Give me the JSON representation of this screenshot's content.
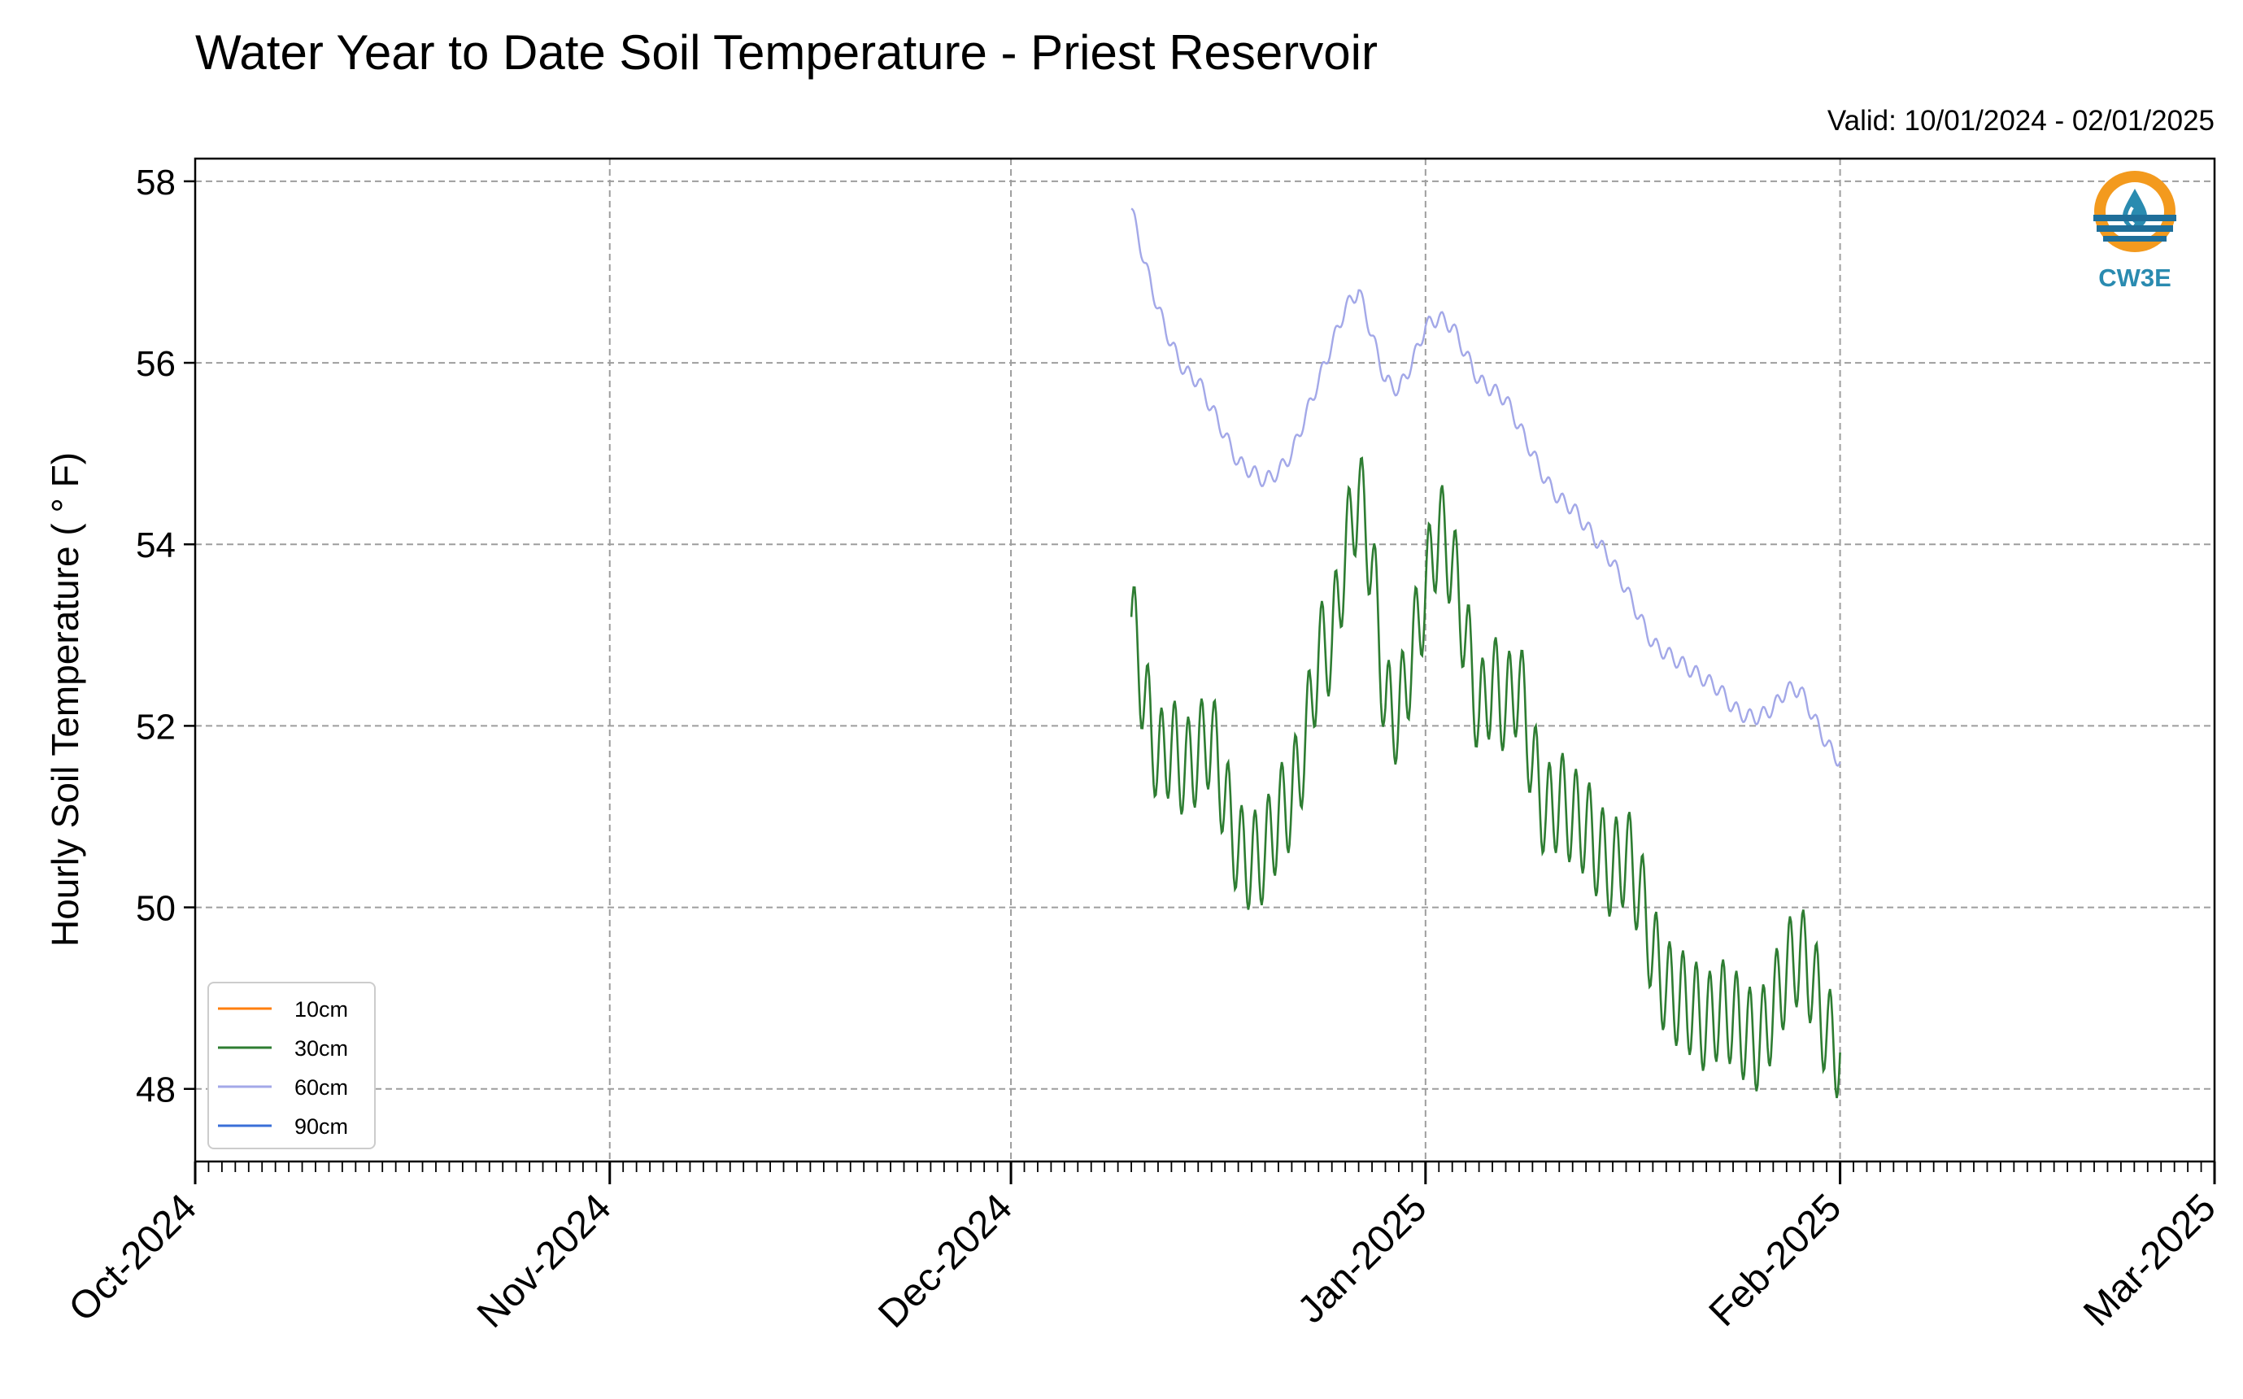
{
  "chart_data": {
    "type": "line",
    "title": "Water Year to Date Soil Temperature - Priest Reservoir",
    "subtitle": "Valid: 10/01/2024 - 02/01/2025",
    "xlabel": "",
    "ylabel": "Hourly Soil Temperature ($^\\circ$F)",
    "ylabel_text": "Hourly Soil Temperature ( ° F)",
    "x_ticks": [
      "Oct-2024",
      "Nov-2024",
      "Dec-2024",
      "Jan-2025",
      "Feb-2025",
      "Mar-2025"
    ],
    "x_tick_dates": [
      "2024-10-01",
      "2024-11-01",
      "2024-12-01",
      "2025-01-01",
      "2025-02-01",
      "2025-03-01"
    ],
    "xlim": [
      "2024-10-01",
      "2025-03-01"
    ],
    "y_ticks": [
      "48",
      "50",
      "52",
      "54",
      "56",
      "58"
    ],
    "ylim": [
      47.2,
      58.25
    ],
    "grid": true,
    "legend_position": "lower-left",
    "series": [
      {
        "name": "10cm",
        "color": "#ff7f0e",
        "x": [],
        "y": []
      },
      {
        "name": "30cm",
        "color": "#2e7d32",
        "x": [
          "2024-12-10",
          "2024-12-11",
          "2024-12-12",
          "2024-12-13",
          "2024-12-14",
          "2024-12-15",
          "2024-12-16",
          "2024-12-17",
          "2024-12-18",
          "2024-12-19",
          "2024-12-20",
          "2024-12-21",
          "2024-12-22",
          "2024-12-23",
          "2024-12-24",
          "2024-12-25",
          "2024-12-26",
          "2024-12-27",
          "2024-12-28",
          "2024-12-29",
          "2024-12-30",
          "2024-12-31",
          "2025-01-01",
          "2025-01-02",
          "2025-01-03",
          "2025-01-04",
          "2025-01-05",
          "2025-01-06",
          "2025-01-07",
          "2025-01-08",
          "2025-01-09",
          "2025-01-10",
          "2025-01-11",
          "2025-01-12",
          "2025-01-13",
          "2025-01-14",
          "2025-01-15",
          "2025-01-16",
          "2025-01-17",
          "2025-01-18",
          "2025-01-19",
          "2025-01-20",
          "2025-01-21",
          "2025-01-22",
          "2025-01-23",
          "2025-01-24",
          "2025-01-25",
          "2025-01-26",
          "2025-01-27",
          "2025-01-28",
          "2025-01-29",
          "2025-01-30",
          "2025-01-31",
          "2025-02-01"
        ],
        "y": [
          53.2,
          52.3,
          51.6,
          51.8,
          51.5,
          51.7,
          51.9,
          51.2,
          50.6,
          50.5,
          50.6,
          51.0,
          51.2,
          51.8,
          52.8,
          52.9,
          53.9,
          54.6,
          53.8,
          52.2,
          52.1,
          52.8,
          53.5,
          54.2,
          53.8,
          53.0,
          52.1,
          52.5,
          52.2,
          52.5,
          51.6,
          51.0,
          51.2,
          51.0,
          50.9,
          50.6,
          50.4,
          50.6,
          50.2,
          49.5,
          49.1,
          49.0,
          48.9,
          48.7,
          48.9,
          48.8,
          48.6,
          48.5,
          48.9,
          49.3,
          49.5,
          49.2,
          48.6,
          48.4
        ]
      },
      {
        "name": "60cm",
        "color": "#a3a8e8",
        "x": [
          "2024-12-10",
          "2024-12-11",
          "2024-12-12",
          "2024-12-13",
          "2024-12-14",
          "2024-12-15",
          "2024-12-16",
          "2024-12-17",
          "2024-12-18",
          "2024-12-19",
          "2024-12-20",
          "2024-12-21",
          "2024-12-22",
          "2024-12-23",
          "2024-12-24",
          "2024-12-25",
          "2024-12-26",
          "2024-12-27",
          "2024-12-28",
          "2024-12-29",
          "2024-12-30",
          "2024-12-31",
          "2025-01-01",
          "2025-01-02",
          "2025-01-03",
          "2025-01-04",
          "2025-01-05",
          "2025-01-06",
          "2025-01-07",
          "2025-01-08",
          "2025-01-09",
          "2025-01-10",
          "2025-01-11",
          "2025-01-12",
          "2025-01-13",
          "2025-01-14",
          "2025-01-15",
          "2025-01-16",
          "2025-01-17",
          "2025-01-18",
          "2025-01-19",
          "2025-01-20",
          "2025-01-21",
          "2025-01-22",
          "2025-01-23",
          "2025-01-24",
          "2025-01-25",
          "2025-01-26",
          "2025-01-27",
          "2025-01-28",
          "2025-01-29",
          "2025-01-30",
          "2025-01-31",
          "2025-02-01"
        ],
        "y": [
          57.7,
          57.1,
          56.6,
          56.2,
          55.9,
          55.8,
          55.5,
          55.2,
          54.9,
          54.8,
          54.7,
          54.8,
          55.0,
          55.4,
          55.8,
          56.2,
          56.6,
          56.8,
          56.3,
          55.8,
          55.7,
          56.0,
          56.4,
          56.5,
          56.4,
          56.1,
          55.8,
          55.7,
          55.6,
          55.3,
          55.0,
          54.7,
          54.5,
          54.4,
          54.2,
          54.0,
          53.8,
          53.5,
          53.2,
          52.9,
          52.8,
          52.7,
          52.6,
          52.5,
          52.4,
          52.2,
          52.1,
          52.1,
          52.2,
          52.4,
          52.4,
          52.1,
          51.8,
          51.6
        ]
      },
      {
        "name": "90cm",
        "color": "#3a6fd8",
        "x": [],
        "y": []
      }
    ]
  },
  "logo": {
    "text": "CW3E",
    "icon": "cw3e-water-drop-logo-icon"
  }
}
